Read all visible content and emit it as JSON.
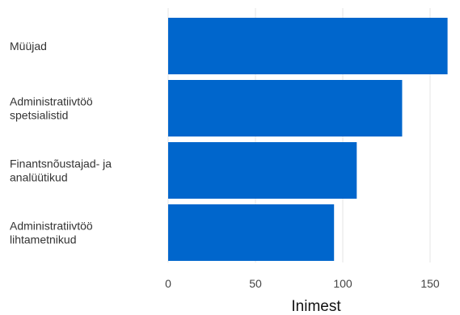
{
  "chart_data": {
    "type": "bar",
    "orientation": "horizontal",
    "categories": [
      [
        "Müüjad"
      ],
      [
        "Administratiivtöö",
        "spetsialistid"
      ],
      [
        "Finantsnõustajad- ja",
        "analüütikud"
      ],
      [
        "Administratiivtöö",
        "lihtametnikud"
      ]
    ],
    "values": [
      160,
      134,
      108,
      95
    ],
    "xlabel": "Inimest",
    "ylabel": "",
    "xlim": [
      0,
      160
    ],
    "xticks": [
      "0",
      "50",
      "100",
      "150"
    ],
    "grid": true,
    "colors": {
      "bar": "#0066cc",
      "grid": "#e6e6e6"
    }
  }
}
